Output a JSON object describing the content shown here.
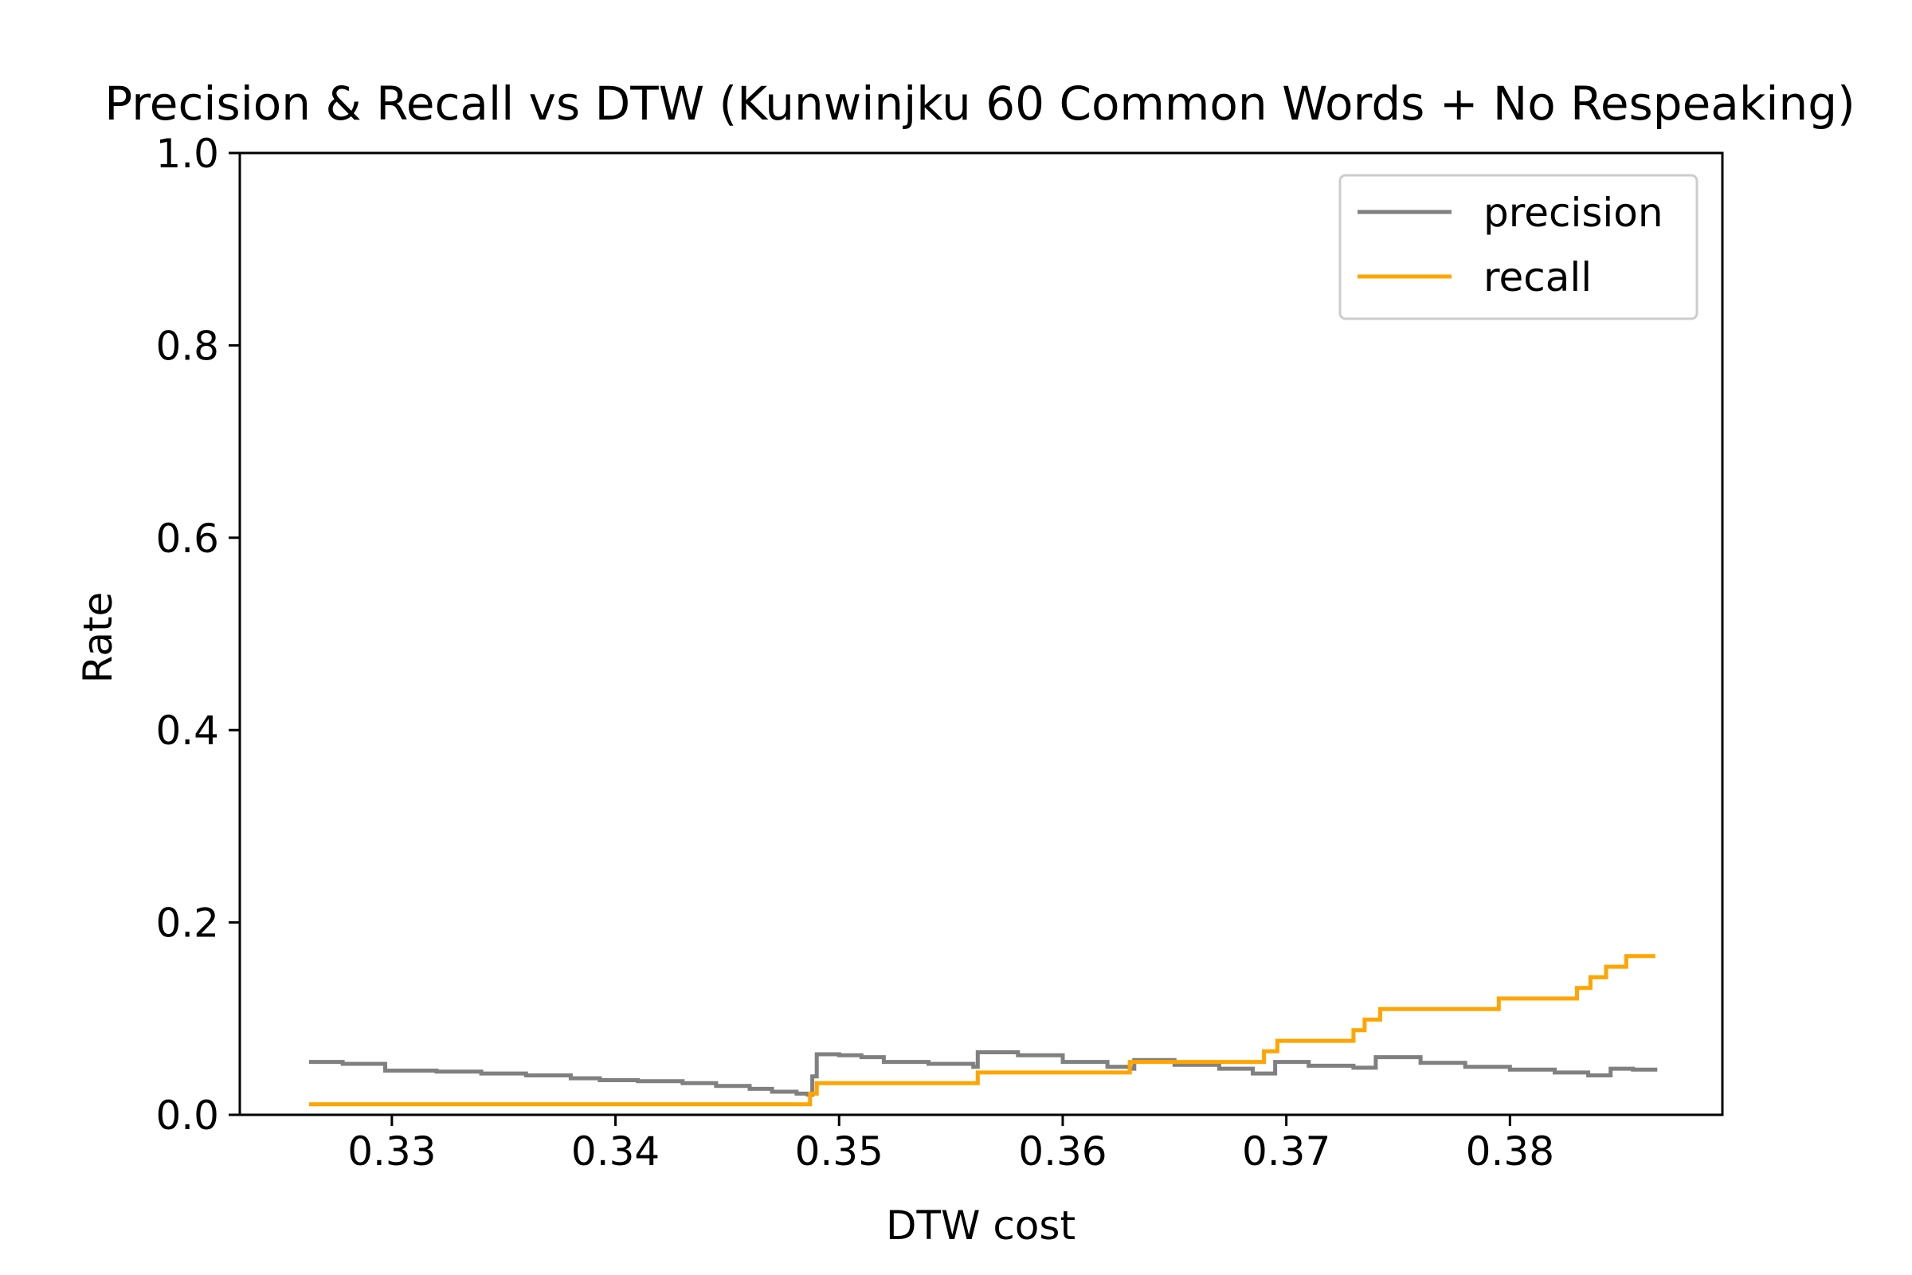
{
  "chart_data": {
    "type": "line",
    "title": "Precision & Recall vs DTW  (Kunwinjku 60 Common Words + No Respeaking)",
    "xlabel": "DTW cost",
    "ylabel": "Rate",
    "xlim": [
      0.3232,
      0.3895
    ],
    "ylim": [
      0.0,
      1.0
    ],
    "xticks": [
      0.33,
      0.34,
      0.35,
      0.36,
      0.37,
      0.38
    ],
    "xtick_labels": [
      "0.33",
      "0.34",
      "0.35",
      "0.36",
      "0.37",
      "0.38"
    ],
    "yticks": [
      0.0,
      0.2,
      0.4,
      0.6,
      0.8,
      1.0
    ],
    "ytick_labels": [
      "0.0",
      "0.2",
      "0.4",
      "0.6",
      "0.8",
      "1.0"
    ],
    "grid": false,
    "legend_position": "top-right",
    "series": [
      {
        "name": "precision",
        "color": "#808080",
        "step": true,
        "points": [
          [
            0.3263,
            0.055
          ],
          [
            0.3278,
            0.053
          ],
          [
            0.3297,
            0.046
          ],
          [
            0.332,
            0.045
          ],
          [
            0.334,
            0.043
          ],
          [
            0.336,
            0.041
          ],
          [
            0.338,
            0.038
          ],
          [
            0.3393,
            0.036
          ],
          [
            0.341,
            0.035
          ],
          [
            0.343,
            0.033
          ],
          [
            0.3445,
            0.03
          ],
          [
            0.346,
            0.027
          ],
          [
            0.347,
            0.024
          ],
          [
            0.3481,
            0.022
          ],
          [
            0.3486,
            0.021
          ],
          [
            0.3488,
            0.04
          ],
          [
            0.349,
            0.063
          ],
          [
            0.35,
            0.062
          ],
          [
            0.351,
            0.06
          ],
          [
            0.352,
            0.055
          ],
          [
            0.354,
            0.053
          ],
          [
            0.356,
            0.05
          ],
          [
            0.3562,
            0.065
          ],
          [
            0.358,
            0.062
          ],
          [
            0.36,
            0.055
          ],
          [
            0.362,
            0.05
          ],
          [
            0.363,
            0.048
          ],
          [
            0.3632,
            0.057
          ],
          [
            0.365,
            0.052
          ],
          [
            0.367,
            0.048
          ],
          [
            0.3685,
            0.043
          ],
          [
            0.3695,
            0.055
          ],
          [
            0.371,
            0.051
          ],
          [
            0.373,
            0.049
          ],
          [
            0.374,
            0.06
          ],
          [
            0.376,
            0.054
          ],
          [
            0.378,
            0.05
          ],
          [
            0.38,
            0.047
          ],
          [
            0.382,
            0.044
          ],
          [
            0.3835,
            0.041
          ],
          [
            0.3845,
            0.048
          ],
          [
            0.3855,
            0.047
          ],
          [
            0.3865,
            0.045
          ]
        ]
      },
      {
        "name": "recall",
        "color": "#ffa500",
        "step": true,
        "points": [
          [
            0.3263,
            0.011
          ],
          [
            0.3487,
            0.011
          ],
          [
            0.3487,
            0.022
          ],
          [
            0.349,
            0.022
          ],
          [
            0.349,
            0.033
          ],
          [
            0.3562,
            0.033
          ],
          [
            0.3562,
            0.044
          ],
          [
            0.363,
            0.044
          ],
          [
            0.363,
            0.055
          ],
          [
            0.369,
            0.055
          ],
          [
            0.369,
            0.066
          ],
          [
            0.3696,
            0.066
          ],
          [
            0.3696,
            0.077
          ],
          [
            0.373,
            0.077
          ],
          [
            0.373,
            0.088
          ],
          [
            0.3735,
            0.088
          ],
          [
            0.3735,
            0.099
          ],
          [
            0.3742,
            0.099
          ],
          [
            0.3742,
            0.11
          ],
          [
            0.3795,
            0.11
          ],
          [
            0.3795,
            0.121
          ],
          [
            0.383,
            0.121
          ],
          [
            0.383,
            0.132
          ],
          [
            0.3836,
            0.132
          ],
          [
            0.3836,
            0.143
          ],
          [
            0.3843,
            0.143
          ],
          [
            0.3843,
            0.154
          ],
          [
            0.3852,
            0.154
          ],
          [
            0.3852,
            0.165
          ],
          [
            0.3865,
            0.165
          ]
        ]
      }
    ]
  }
}
